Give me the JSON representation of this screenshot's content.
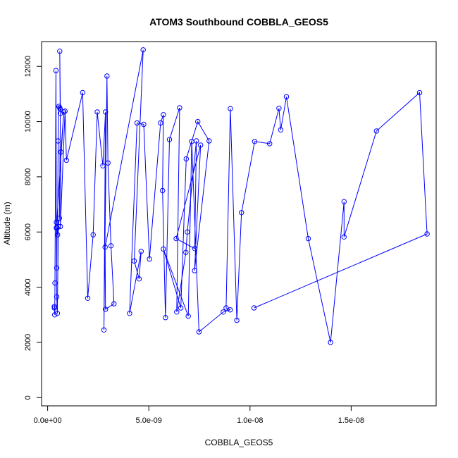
{
  "chart_data": {
    "type": "scatter",
    "title": "ATOM3 Southbound COBBLA_GEOS5",
    "xlabel": "COBBLA_GEOS5",
    "ylabel": "Altitude (m)",
    "xlim": [
      -3e-10,
      1.92e-08
    ],
    "ylim": [
      -300,
      12900
    ],
    "x_ticks": [
      0,
      5e-09,
      1e-08,
      1.5e-08
    ],
    "x_tick_labels": [
      "0.0e+00",
      "5.0e-09",
      "1.0e-08",
      "1.5e-08"
    ],
    "y_ticks": [
      0,
      2000,
      4000,
      6000,
      8000,
      10000,
      12000
    ],
    "y_tick_labels": [
      "0",
      "2000",
      "4000",
      "6000",
      "8000",
      "10000",
      "12000"
    ],
    "grid": false,
    "line_color": "#0000ff",
    "marker": "open-circle",
    "series": [
      {
        "x": [
          3.3e-10,
          3.3e-10,
          3.5e-10,
          3.6e-10,
          4.1e-10,
          4.3e-10,
          4.5e-10,
          4.7e-10,
          4.9e-10,
          5.2e-10,
          5.6e-10,
          6e-10,
          6.2e-10,
          6e-10,
          6.3e-10,
          5.8e-10,
          5.3e-10,
          4.8e-10,
          4.5e-10,
          4.3e-10,
          8e-10,
          6.5e-10,
          6.3e-10,
          8.6e-10,
          9.3e-10,
          1.73e-09,
          1.98e-09,
          2.25e-09,
          2.45e-09,
          2.73e-09,
          2.86e-09,
          2.78e-09,
          2.93e-09,
          2.98e-09,
          3.13e-09,
          3.28e-09,
          2.86e-09,
          2.84e-09,
          4.72e-09,
          4.28e-09,
          4.52e-09,
          4.62e-09,
          4.05e-09,
          4.42e-09,
          4.75e-09,
          5.03e-09,
          5.58e-09,
          5.72e-09,
          5.68e-09,
          5.82e-09,
          6.02e-09,
          6.52e-09,
          6.38e-09,
          6.83e-09,
          6.9e-09,
          7.35e-09,
          7.27e-09,
          6.35e-09,
          7.56e-09,
          7.26e-09,
          7.98e-09,
          7.42e-09,
          6.85e-09,
          6.58e-09,
          5.72e-09,
          6.95e-09,
          7.12e-09,
          7.48e-09,
          8.68e-09,
          9.02e-09,
          8.82e-09,
          9.03e-09,
          9.35e-09,
          9.58e-09,
          1.023e-08,
          1.097e-08,
          1.143e-08,
          1.152e-08,
          1.18e-08,
          1.288e-08,
          1.398e-08,
          1.465e-08,
          1.465e-08,
          1.625e-08,
          1.838e-08,
          1.875e-08,
          1.02e-08
        ],
        "y": [
          3250,
          3300,
          3000,
          4150,
          11850,
          6350,
          4700,
          6150,
          5900,
          9300,
          10550,
          10500,
          10450,
          12550,
          10300,
          6500,
          6200,
          3050,
          3650,
          6150,
          10350,
          8900,
          6200,
          10380,
          8600,
          11050,
          3600,
          5900,
          10350,
          8400,
          10350,
          2450,
          11650,
          8500,
          5500,
          3400,
          3200,
          5450,
          12600,
          4950,
          4300,
          5300,
          3050,
          9950,
          9900,
          5020,
          9950,
          10250,
          7500,
          2900,
          9350,
          10500,
          3100,
          5260,
          6000,
          9300,
          5400,
          5760,
          9150,
          4600,
          9300,
          10000,
          8650,
          3250,
          5380,
          2950,
          9280,
          2380,
          3100,
          3180,
          3250,
          10470,
          2800,
          6700,
          9280,
          9200,
          10480,
          9700,
          10900,
          5760,
          2000,
          7100,
          5820,
          9660,
          11050,
          5930,
          3250
        ]
      }
    ]
  }
}
